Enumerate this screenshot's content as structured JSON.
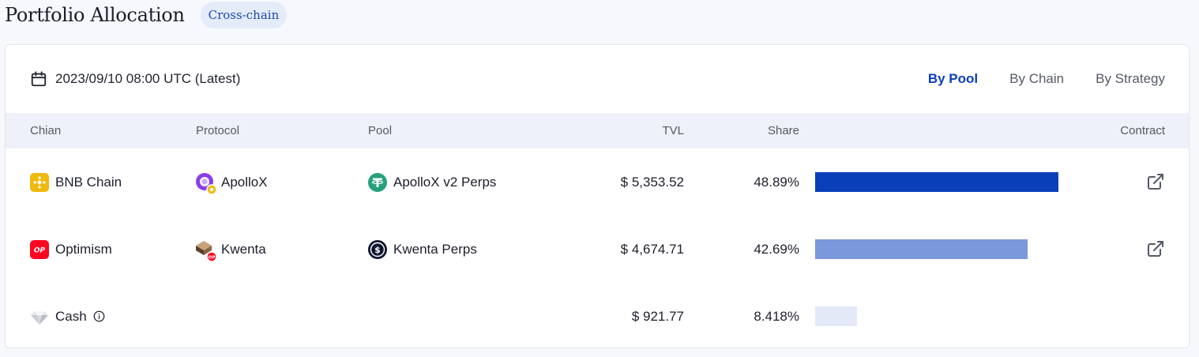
{
  "header": {
    "title": "Portfolio Allocation",
    "tag": "Cross-chain"
  },
  "toolbar": {
    "date_label": "2023/09/10 08:00 UTC (Latest)",
    "views": [
      "By Pool",
      "By Chain",
      "By Strategy"
    ],
    "active_view": "By Pool"
  },
  "table": {
    "columns": {
      "chain": "Chian",
      "protocol": "Protocol",
      "pool": "Pool",
      "tvl": "TVL",
      "share": "Share",
      "contract": "Contract"
    },
    "rows": [
      {
        "chain": "BNB Chain",
        "chain_icon": "bnb-chain-icon",
        "protocol": "ApolloX",
        "protocol_icon": "apollox-icon",
        "pool": "ApolloX v2 Perps",
        "pool_icon": "tether-icon",
        "tvl": "$ 5,353.52",
        "share": "48.89%",
        "share_value": 48.89,
        "bar_color": "#0a3fba",
        "has_contract": true
      },
      {
        "chain": "Optimism",
        "chain_icon": "optimism-icon",
        "protocol": "Kwenta",
        "protocol_icon": "kwenta-icon",
        "pool": "Kwenta Perps",
        "pool_icon": "susd-icon",
        "tvl": "$ 4,674.71",
        "share": "42.69%",
        "share_value": 42.69,
        "bar_color": "#7a98db",
        "has_contract": true
      },
      {
        "chain": "Cash",
        "chain_icon": "diamond-icon",
        "protocol": "",
        "pool": "",
        "tvl": "$ 921.77",
        "share": "8.418%",
        "share_value": 8.418,
        "bar_color": "#e3e9f7",
        "has_contract": false
      }
    ]
  },
  "colors": {
    "accent": "#0b3fb8",
    "header_bg": "#eef1f9",
    "tag_bg": "#e4ecfa"
  }
}
